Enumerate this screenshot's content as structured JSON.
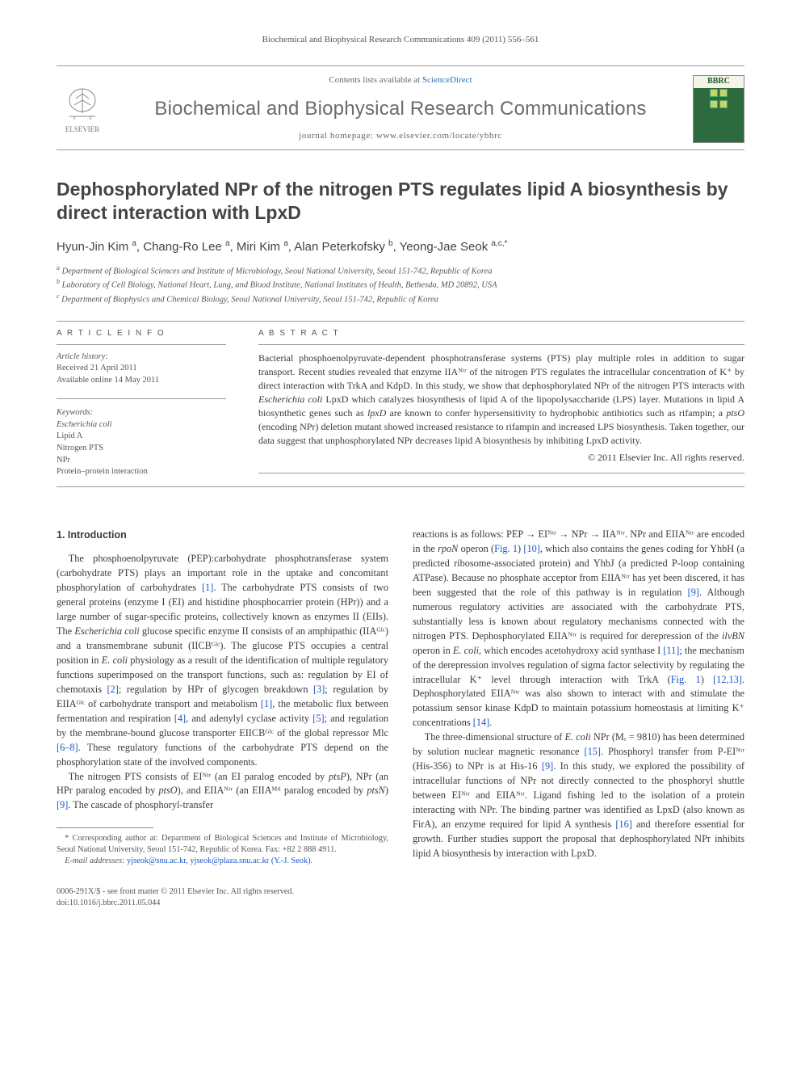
{
  "running_head": "Biochemical and Biophysical Research Communications 409 (2011) 556–561",
  "header": {
    "contents_prefix": "Contents lists available at ",
    "contents_link": "ScienceDirect",
    "journal_name": "Biochemical and Biophysical Research Communications",
    "homepage_prefix": "journal homepage: ",
    "homepage_url": "www.elsevier.com/locate/ybbrc",
    "publisher_logo_label": "ELSEVIER",
    "cover_label": "BBRC"
  },
  "title": "Dephosphorylated NPr of the nitrogen PTS regulates lipid A biosynthesis by direct interaction with LpxD",
  "authors_html": "Hyun-Jin Kim <sup>a</sup>, Chang-Ro Lee <sup>a</sup>, Miri Kim <sup>a</sup>, Alan Peterkofsky <sup>b</sup>, Yeong-Jae Seok <sup>a,c,*</sup>",
  "affiliations": [
    "a Department of Biological Sciences and Institute of Microbiology, Seoul National University, Seoul 151-742, Republic of Korea",
    "b Laboratory of Cell Biology, National Heart, Lung, and Blood Institute, National Institutes of Health, Bethesda, MD 20892, USA",
    "c Department of Biophysics and Chemical Biology, Seoul National University, Seoul 151-742, Republic of Korea"
  ],
  "article_info": {
    "heading": "A R T I C L E   I N F O",
    "history_head": "Article history:",
    "received": "Received 21 April 2011",
    "online": "Available online 14 May 2011",
    "keywords_head": "Keywords:",
    "keywords": [
      "Escherichia coli",
      "Lipid A",
      "Nitrogen PTS",
      "NPr",
      "Protein–protein interaction"
    ]
  },
  "abstract": {
    "heading": "A B S T R A C T",
    "text": "Bacterial phosphoenolpyruvate-dependent phosphotransferase systems (PTS) play multiple roles in addition to sugar transport. Recent studies revealed that enzyme IIAᴺᵗʳ of the nitrogen PTS regulates the intracellular concentration of K⁺ by direct interaction with TrkA and KdpD. In this study, we show that dephosphorylated NPr of the nitrogen PTS interacts with Escherichia coli LpxD which catalyzes biosynthesis of lipid A of the lipopolysaccharide (LPS) layer. Mutations in lipid A biosynthetic genes such as lpxD are known to confer hypersensitivity to hydrophobic antibiotics such as rifampin; a ptsO (encoding NPr) deletion mutant showed increased resistance to rifampin and increased LPS biosynthesis. Taken together, our data suggest that unphosphorylated NPr decreases lipid A biosynthesis by inhibiting LpxD activity.",
    "copyright": "© 2011 Elsevier Inc. All rights reserved."
  },
  "section1": {
    "heading": "1. Introduction",
    "p1": "The phosphoenolpyruvate (PEP):carbohydrate phosphotransferase system (carbohydrate PTS) plays an important role in the uptake and concomitant phosphorylation of carbohydrates [1]. The carbohydrate PTS consists of two general proteins (enzyme I (EI) and histidine phosphocarrier protein (HPr)) and a large number of sugar-specific proteins, collectively known as enzymes II (EIIs). The Escherichia coli glucose specific enzyme II consists of an amphipathic (IIAᴳˡᶜ) and a transmembrane subunit (IICBᴳˡᶜ). The glucose PTS occupies a central position in E. coli physiology as a result of the identification of multiple regulatory functions superimposed on the transport functions, such as: regulation by EI of chemotaxis [2]; regulation by HPr of glycogen breakdown [3]; regulation by EIIAᴳˡᶜ of carbohydrate transport and metabolism [1], the metabolic flux between fermentation and respiration [4], and adenylyl cyclase activity [5]; and regulation by the membrane-bound glucose transporter EIICBᴳˡᶜ of the global repressor Mlc [6–8]. These regulatory functions of the carbohydrate PTS depend on the phosphorylation state of the involved components.",
    "p2": "The nitrogen PTS consists of EIᴺᵗʳ (an EI paralog encoded by ptsP), NPr (an HPr paralog encoded by ptsO), and EIIAᴺᵗʳ (an EIIAᴹᵗˡ paralog encoded by ptsN) [9]. The cascade of phosphoryl-transfer",
    "p3": "reactions is as follows: PEP → EIᴺᵗʳ → NPr → IIAᴺᵗʳ. NPr and EIIAᴺᵗʳ are encoded in the rpoN operon (Fig. 1) [10], which also contains the genes coding for YhbH (a predicted ribosome-associated protein) and YhbJ (a predicted P-loop containing ATPase). Because no phosphate acceptor from EIIAᴺᵗʳ has yet been discered, it has been suggested that the role of this pathway is in regulation [9]. Although numerous regulatory activities are associated with the carbohydrate PTS, substantially less is known about regulatory mechanisms connected with the nitrogen PTS. Dephosphorylated EIIAᴺᵗʳ is required for derepression of the ilvBN operon in E. coli, which encodes acetohydroxy acid synthase I [11]; the mechanism of the derepression involves regulation of sigma factor selectivity by regulating the intracellular K⁺ level through interaction with TrkA (Fig. 1) [12,13]. Dephosphorylated EIIAᴺᵗʳ was also shown to interact with and stimulate the potassium sensor kinase KdpD to maintain potassium homeostasis at limiting K⁺ concentrations [14].",
    "p4": "The three-dimensional structure of E. coli NPr (Mᵣ = 9810) has been determined by solution nuclear magnetic resonance [15]. Phosphoryl transfer from P-EIᴺᵗʳ (His-356) to NPr is at His-16 [9]. In this study, we explored the possibility of intracellular functions of NPr not directly connected to the phosphoryl shuttle between EIᴺᵗʳ and EIIAᴺᵗʳ. Ligand fishing led to the isolation of a protein interacting with NPr. The binding partner was identified as LpxD (also known as FirA), an enzyme required for lipid A synthesis [16] and therefore essential for growth. Further studies support the proposal that dephosphorylated NPr inhibits lipid A biosynthesis by interaction with LpxD."
  },
  "footnotes": {
    "corr": "* Corresponding author at: Department of Biological Sciences and Institute of Microbiology, Seoul National University, Seoul 151-742, Republic of Korea. Fax: +82 2 888 4911.",
    "email_label": "E-mail addresses:",
    "emails": "yjseok@snu.ac.kr, yjseok@plaza.snu.ac.kr (Y.-J. Seok)."
  },
  "bottom": {
    "left1": "0006-291X/$ - see front matter © 2011 Elsevier Inc. All rights reserved.",
    "left2": "doi:10.1016/j.bbrc.2011.05.044"
  },
  "colors": {
    "link": "#1b57c7",
    "text": "#3a3a3a",
    "rule": "#999999",
    "cover_green": "#2d6a3e"
  },
  "fonts": {
    "body": "Georgia/Times",
    "display": "Trebuchet-like sans",
    "body_size_pt": 9.5,
    "title_size_pt": 17,
    "journal_size_pt": 18
  }
}
